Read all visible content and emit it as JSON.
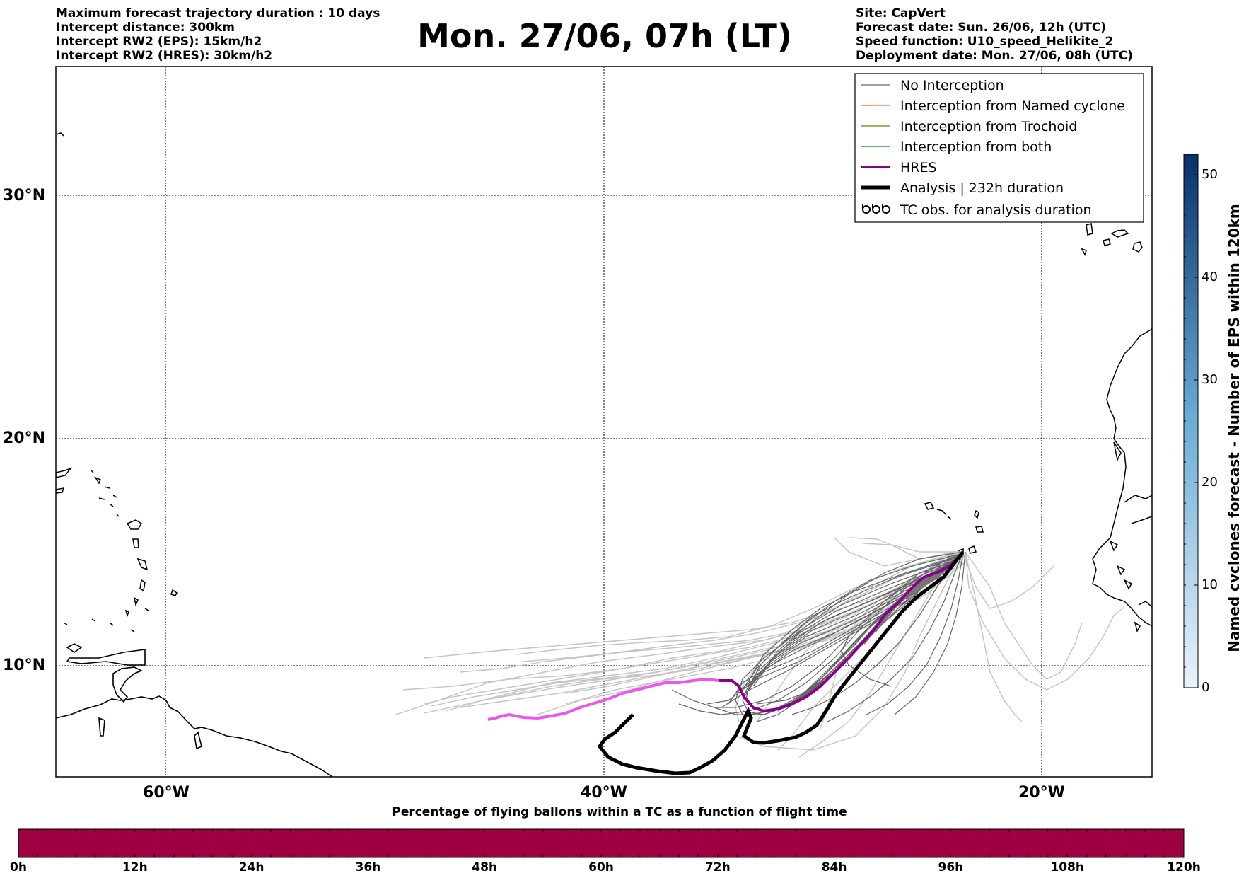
{
  "header": {
    "left_lines": [
      "Maximum forecast trajectory duration : 10 days",
      "Intercept distance: 300km",
      "Intercept RW2 (EPS):  15km/h2",
      "Intercept RW2 (HRES): 30km/h2"
    ],
    "right_lines": [
      "Site: CapVert",
      "Forecast date: Sun. 26/06, 12h (UTC)",
      "Speed function: U10_speed_Helikite_2",
      "Deployment date: Mon. 27/06, 08h (UTC)"
    ],
    "title": "Mon. 27/06, 07h (LT)"
  },
  "map": {
    "lat_labels": [
      "30°N",
      "20°N",
      "10°N"
    ],
    "lon_labels": [
      "60°W",
      "40°W",
      "20°W"
    ],
    "lat_values": [
      30,
      20,
      10
    ],
    "lon_values": [
      -60,
      -40,
      -20
    ],
    "extent": {
      "lon_min": -65,
      "lon_max": -15,
      "lat_min": 5.4,
      "lat_max": 34.6
    }
  },
  "legend": {
    "items": [
      {
        "label": "No Interception",
        "color": "#808080",
        "style": "thin"
      },
      {
        "label": "Interception from Named cyclone",
        "color": "#ff7f50",
        "style": "thin"
      },
      {
        "label": "Interception from Trochoid",
        "color": "#9a8a3a",
        "style": "thin"
      },
      {
        "label": "Interception from both",
        "color": "#2ca02c",
        "style": "thin"
      },
      {
        "label": "HRES",
        "color": "#8b008b",
        "style": "thick"
      },
      {
        "label": "Analysis | 232h duration",
        "color": "#000000",
        "style": "thick"
      },
      {
        "label": "TC obs. for analysis duration",
        "color": "#000000",
        "style": "tc-icon"
      }
    ]
  },
  "colorbar_right": {
    "label": "Named cyclones forecast - Number of EPS within 120km",
    "tick_labels": [
      "0",
      "10",
      "20",
      "30",
      "40",
      "50"
    ],
    "tick_values": [
      0,
      10,
      20,
      30,
      40,
      50
    ],
    "max": 52,
    "color_low": "#eaf2fb",
    "color_high": "#08306b"
  },
  "colorbar_bottom": {
    "title": "Percentage of flying ballons within a TC as a function of flight time",
    "tick_labels": [
      "0h",
      "12h",
      "24h",
      "36h",
      "48h",
      "60h",
      "72h",
      "84h",
      "96h",
      "108h",
      "120h"
    ],
    "fill_color": "#9e0142"
  },
  "colors": {
    "hres_forecast": "#8b008b",
    "hres_extension": "#ee55ee",
    "analysis": "#000000",
    "eps_dark": "#666666",
    "eps_light": "#c4c4c4"
  }
}
